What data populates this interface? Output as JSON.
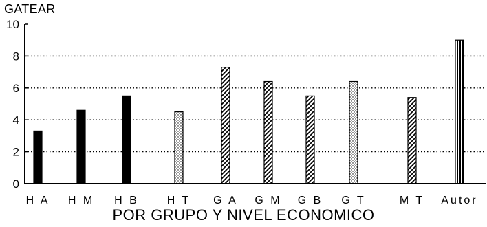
{
  "chart_data": {
    "type": "bar",
    "title": "",
    "ylabel": "GATEAR",
    "xlabel": "POR GRUPO Y NIVEL ECONOMICO",
    "ylim": [
      0,
      10
    ],
    "yticks": [
      0,
      2,
      4,
      6,
      8,
      10
    ],
    "grid": "horizontal dotted",
    "categories": [
      "H A",
      "H M",
      "H B",
      "H T",
      "G A",
      "G M",
      "G B",
      "G T",
      "M T",
      "Autor"
    ],
    "values": [
      3.3,
      4.6,
      5.5,
      4.5,
      7.3,
      6.4,
      5.5,
      6.4,
      5.4,
      9.0
    ],
    "fills": [
      "solid",
      "solid",
      "solid",
      "dotted",
      "hatched",
      "hatched",
      "hatched",
      "dotted",
      "hatched",
      "vertical-stripes"
    ],
    "colors": {
      "ink": "#000000",
      "background": "#ffffff"
    }
  }
}
